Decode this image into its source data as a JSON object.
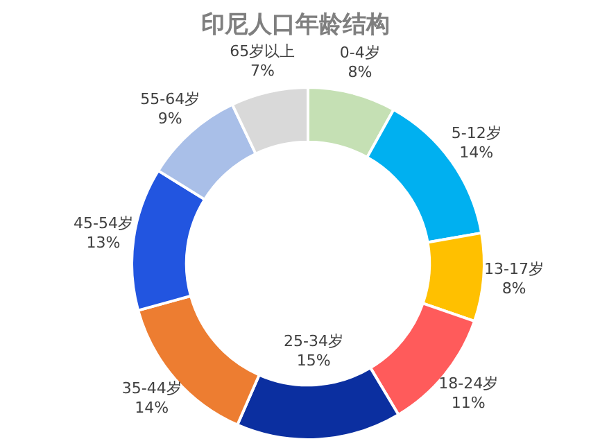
{
  "chart_data": {
    "type": "donut",
    "title": "印尼人口年龄结构",
    "categories": [
      "0-4岁",
      "5-12岁",
      "13-17岁",
      "18-24岁",
      "25-34岁",
      "35-44岁",
      "45-54岁",
      "55-64岁",
      "65岁以上"
    ],
    "values": [
      8,
      14,
      8,
      11,
      15,
      14,
      13,
      9,
      7
    ],
    "colors": [
      "#c5e0b4",
      "#00b0f0",
      "#ffc000",
      "#ff5b5b",
      "#0b2fa0",
      "#ed7d31",
      "#2255e0",
      "#a9bfe8",
      "#d9d9d9"
    ],
    "value_labels": [
      "8%",
      "14%",
      "8%",
      "11%",
      "15%",
      "14%",
      "13%",
      "9%",
      "7%"
    ],
    "legend": false
  }
}
